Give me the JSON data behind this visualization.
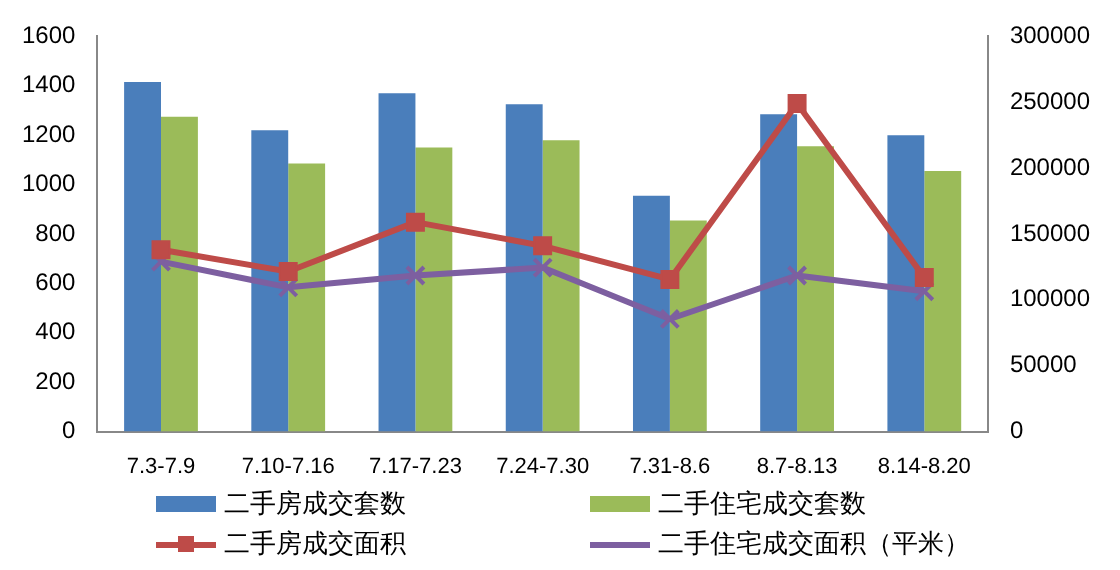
{
  "chart_data": {
    "type": "bar",
    "categories": [
      "7.3-7.9",
      "7.10-7.16",
      "7.17-7.23",
      "7.24-7.30",
      "7.31-8.6",
      "8.7-8.13",
      "8.14-8.20"
    ],
    "series": [
      {
        "name": "二手房成交套数",
        "color": "#4a7ebb",
        "values": [
          1415,
          1220,
          1370,
          1325,
          955,
          1285,
          1200
        ]
      },
      {
        "name": "二手住宅成交套数",
        "color": "#9bbb59",
        "values": [
          1275,
          1085,
          1150,
          1180,
          855,
          1155,
          1055
        ]
      },
      {
        "name": "二手房成交面积",
        "type": "line",
        "axis": "y2",
        "marker": "square",
        "color": "#be4b48",
        "values": [
          138000,
          121500,
          159000,
          141000,
          115500,
          249000,
          117000
        ]
      },
      {
        "name": "二手住宅成交面积（平米）",
        "type": "line",
        "axis": "y2",
        "marker": "cross",
        "color": "#7d5fa0",
        "values": [
          129000,
          109500,
          118500,
          124500,
          85500,
          118500,
          106500
        ]
      }
    ],
    "ylim": [
      0,
      1600
    ],
    "yticks": [
      0,
      200,
      400,
      600,
      800,
      1000,
      1200,
      1400,
      1600
    ],
    "y2lim": [
      0,
      300000
    ],
    "y2ticks": [
      0,
      50000,
      100000,
      150000,
      200000,
      250000,
      300000
    ],
    "grid": false,
    "legend": "bottom"
  }
}
